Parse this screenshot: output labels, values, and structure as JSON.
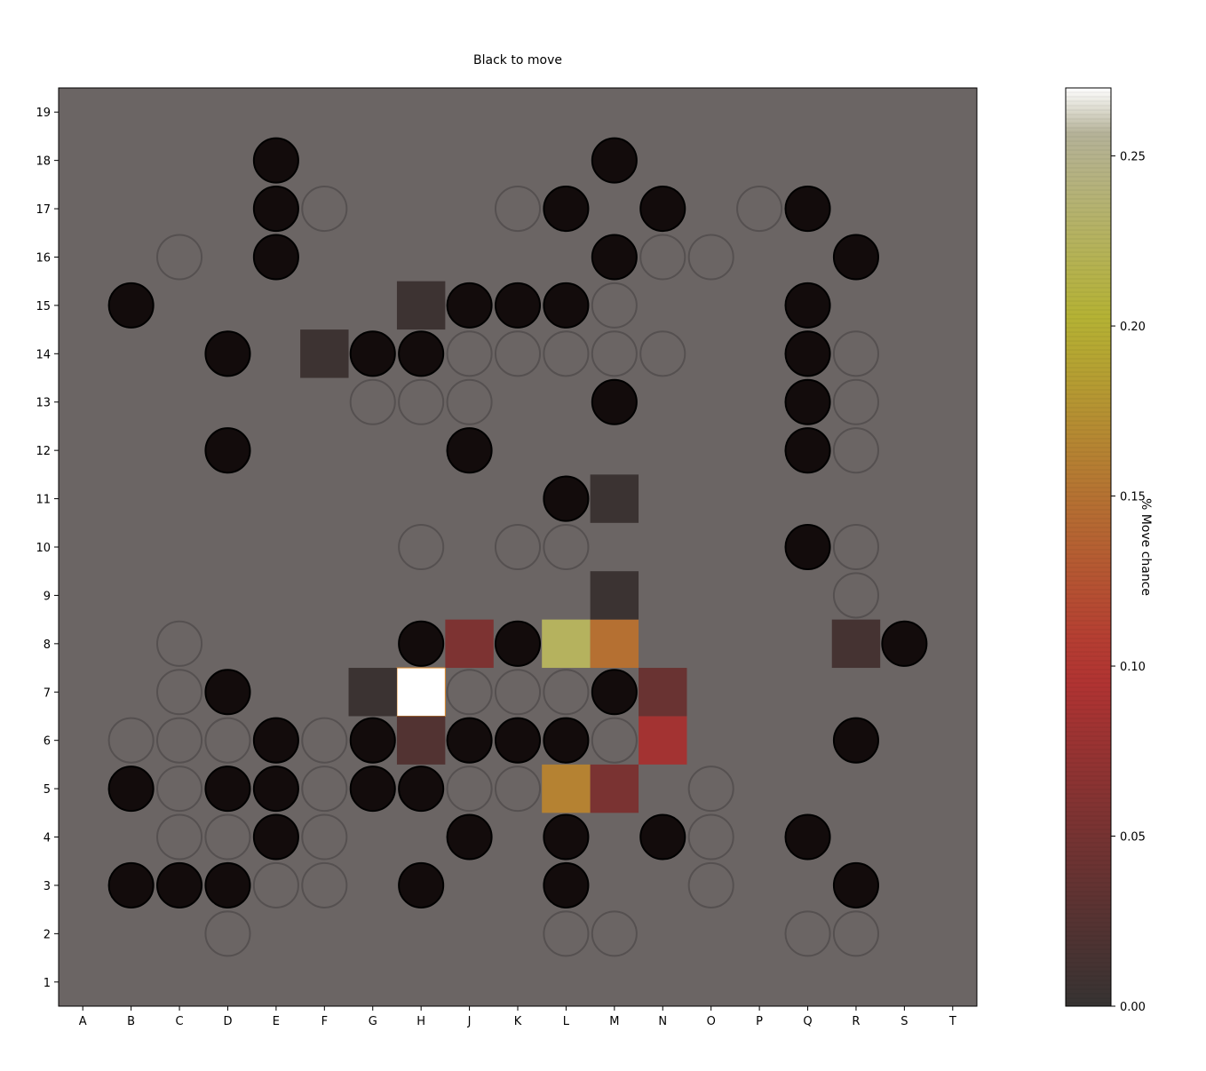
{
  "chart_data": {
    "type": "heatmap",
    "title": "Black to move",
    "x_labels": [
      "A",
      "B",
      "C",
      "D",
      "E",
      "F",
      "G",
      "H",
      "J",
      "K",
      "L",
      "M",
      "N",
      "O",
      "P",
      "Q",
      "R",
      "S",
      "T"
    ],
    "y_labels": [
      "1",
      "2",
      "3",
      "4",
      "5",
      "6",
      "7",
      "8",
      "9",
      "10",
      "11",
      "12",
      "13",
      "14",
      "15",
      "16",
      "17",
      "18",
      "19"
    ],
    "colorbar": {
      "label": "% Move chance",
      "range": [
        0,
        0.27
      ],
      "ticks": [
        "0.00",
        "0.05",
        "0.10",
        "0.15",
        "0.20",
        "0.25"
      ],
      "tick_values": [
        0,
        0.05,
        0.1,
        0.15,
        0.2,
        0.25
      ],
      "colormap": "hot"
    },
    "move_chance": [
      {
        "x": "H",
        "y": 7,
        "value": 0.27
      },
      {
        "x": "L",
        "y": 8,
        "value": 0.225
      },
      {
        "x": "L",
        "y": 5,
        "value": 0.163
      },
      {
        "x": "M",
        "y": 8,
        "value": 0.148
      },
      {
        "x": "N",
        "y": 6,
        "value": 0.085
      },
      {
        "x": "J",
        "y": 8,
        "value": 0.055
      },
      {
        "x": "M",
        "y": 5,
        "value": 0.053
      },
      {
        "x": "N",
        "y": 7,
        "value": 0.04
      },
      {
        "x": "H",
        "y": 6,
        "value": 0.022
      },
      {
        "x": "R",
        "y": 8,
        "value": 0.012
      },
      {
        "x": "H",
        "y": 15,
        "value": 0.006
      },
      {
        "x": "F",
        "y": 14,
        "value": 0.006
      },
      {
        "x": "M",
        "y": 9,
        "value": 0.004
      },
      {
        "x": "M",
        "y": 11,
        "value": 0.004
      },
      {
        "x": "G",
        "y": 7,
        "value": 0.004
      }
    ],
    "black_stones": [
      "E18",
      "M18",
      "E17",
      "L17",
      "N17",
      "Q17",
      "E16",
      "M16",
      "R16",
      "B15",
      "J15",
      "K15",
      "L15",
      "Q15",
      "D14",
      "G14",
      "H14",
      "Q14",
      "M13",
      "Q13",
      "D12",
      "J12",
      "Q12",
      "L11",
      "Q10",
      "H8",
      "K8",
      "S8",
      "D7",
      "M7",
      "E6",
      "G6",
      "J6",
      "K6",
      "L6",
      "R6",
      "B5",
      "D5",
      "E5",
      "G5",
      "H5",
      "E4",
      "J4",
      "L4",
      "N4",
      "Q4",
      "B3",
      "C3",
      "D3",
      "H3",
      "L3",
      "R3"
    ],
    "white_stones": [
      "F17",
      "K17",
      "P17",
      "C16",
      "N16",
      "O16",
      "M15",
      "J14",
      "K14",
      "L14",
      "M14",
      "N14",
      "R14",
      "G13",
      "H13",
      "J13",
      "R13",
      "R12",
      "H10",
      "K10",
      "L10",
      "R10",
      "R9",
      "C8",
      "C7",
      "J7",
      "K7",
      "L7",
      "B6",
      "C6",
      "D6",
      "F6",
      "M6",
      "C5",
      "F5",
      "J5",
      "K5",
      "O5",
      "C4",
      "D4",
      "F4",
      "O4",
      "E3",
      "F3",
      "O3",
      "D2",
      "L2",
      "M2",
      "Q2",
      "R2"
    ]
  }
}
